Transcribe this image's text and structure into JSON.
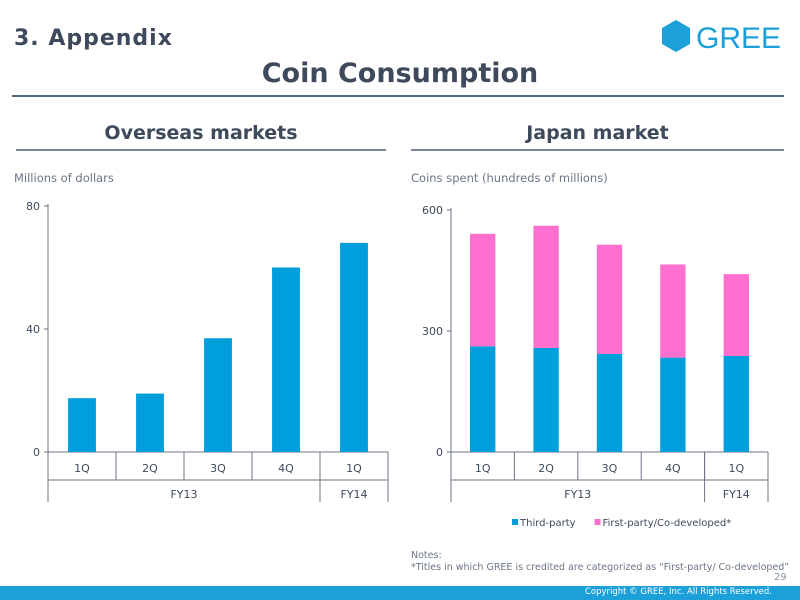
{
  "header": {
    "section": "3. Appendix",
    "logo_text": "GREE",
    "title": "Coin Consumption"
  },
  "colors": {
    "third_party": "#009fdb",
    "first_party": "#ff6fcf",
    "text": "#3e4a5b",
    "footer": "#1ba0da"
  },
  "panels": {
    "left": {
      "title": "Overseas markets",
      "unit": "Millions of dollars"
    },
    "right": {
      "title": "Japan market",
      "unit": "Coins spent (hundreds of millions)"
    }
  },
  "chart_data": [
    {
      "type": "bar",
      "title": "Overseas markets",
      "ylabel": "Millions of dollars",
      "categories": [
        "1Q",
        "2Q",
        "3Q",
        "4Q",
        "1Q"
      ],
      "groups": [
        {
          "label": "FY13",
          "span": 4
        },
        {
          "label": "FY14",
          "span": 1
        }
      ],
      "values": [
        17.5,
        19,
        37,
        60,
        68
      ],
      "ylim": [
        0,
        80
      ],
      "yticks": [
        0,
        40,
        80
      ]
    },
    {
      "type": "bar",
      "stacked": true,
      "title": "Japan market",
      "ylabel": "Coins spent (hundreds of millions)",
      "categories": [
        "1Q",
        "2Q",
        "3Q",
        "4Q",
        "1Q"
      ],
      "groups": [
        {
          "label": "FY13",
          "span": 4
        },
        {
          "label": "FY14",
          "span": 1
        }
      ],
      "series": [
        {
          "name": "Third-party",
          "values": [
            262,
            258,
            243,
            234,
            238
          ]
        },
        {
          "name": "First-party/Co-developed*",
          "values": [
            279,
            303,
            271,
            231,
            203
          ]
        }
      ],
      "ylim": [
        0,
        600
      ],
      "yticks": [
        0,
        300,
        600
      ],
      "legend": "bottom"
    }
  ],
  "notes": {
    "heading": "Notes:",
    "text": "*Titles in which GREE is credited are categorized as “First-party/ Co-developed”"
  },
  "footer": {
    "page": "29",
    "copyright": "Copyright © GREE, Inc. All Rights Reserved."
  }
}
